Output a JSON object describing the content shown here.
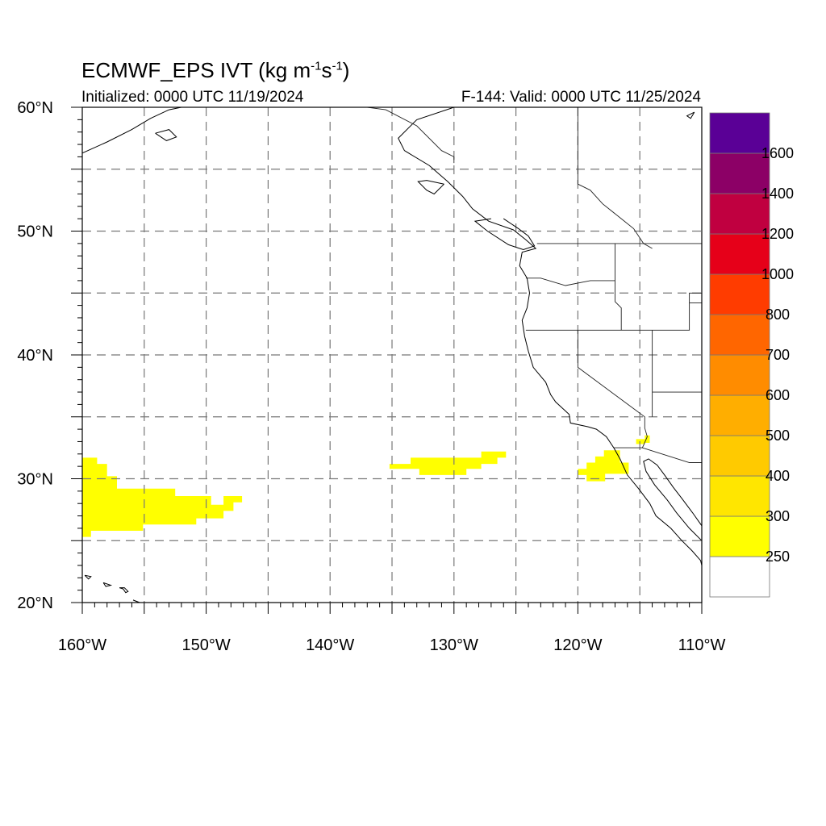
{
  "title": {
    "main": "ECMWF_EPS IVT (kg m",
    "exp1": "-1",
    "mid": "s",
    "exp2": "-1",
    "close": ")"
  },
  "subtitle_left": "Initialized: 0000 UTC 11/19/2024",
  "subtitle_right": "F-144: Valid: 0000 UTC 11/25/2024",
  "map": {
    "lon_range": [
      -160,
      -110
    ],
    "lat_range": [
      20,
      60
    ],
    "lat_labels": [
      {
        "lat": 60,
        "text": "60°N"
      },
      {
        "lat": 50,
        "text": "50°N"
      },
      {
        "lat": 40,
        "text": "40°N"
      },
      {
        "lat": 30,
        "text": "30°N"
      },
      {
        "lat": 20,
        "text": "20°N"
      }
    ],
    "lon_labels": [
      {
        "lon": -160,
        "text": "160°W"
      },
      {
        "lon": -150,
        "text": "150°W"
      },
      {
        "lon": -140,
        "text": "140°W"
      },
      {
        "lon": -130,
        "text": "130°W"
      },
      {
        "lon": -120,
        "text": "120°W"
      },
      {
        "lon": -110,
        "text": "110°W"
      }
    ],
    "grid_step_deg": 5,
    "grid_style": "dashed",
    "fill_color": "#ffff00",
    "ivt_regions": [
      [
        [
          -160,
          31.7
        ],
        [
          -158.8,
          31.7
        ],
        [
          -158.8,
          31.2
        ],
        [
          -158,
          31.2
        ],
        [
          -158,
          30.2
        ],
        [
          -157.2,
          30.2
        ],
        [
          -157.2,
          29.2
        ],
        [
          -152.5,
          29.2
        ],
        [
          -152.5,
          28.6
        ],
        [
          -149.6,
          28.6
        ],
        [
          -149.6,
          27.9
        ],
        [
          -148.6,
          27.9
        ],
        [
          -148.6,
          28.6
        ],
        [
          -147.1,
          28.6
        ],
        [
          -147.1,
          28.1
        ],
        [
          -147.8,
          28.1
        ],
        [
          -147.8,
          27.4
        ],
        [
          -148.6,
          27.4
        ],
        [
          -148.6,
          26.8
        ],
        [
          -150.8,
          26.8
        ],
        [
          -150.8,
          26.3
        ],
        [
          -155.1,
          26.3
        ],
        [
          -155.1,
          25.8
        ],
        [
          -159.3,
          25.8
        ],
        [
          -159.3,
          25.3
        ],
        [
          -160,
          25.3
        ]
      ],
      [
        [
          -135.2,
          31.2
        ],
        [
          -133.5,
          31.2
        ],
        [
          -133.5,
          31.7
        ],
        [
          -127.8,
          31.7
        ],
        [
          -127.8,
          32.2
        ],
        [
          -125.8,
          32.2
        ],
        [
          -125.8,
          31.7
        ],
        [
          -126.5,
          31.7
        ],
        [
          -126.5,
          31.2
        ],
        [
          -127.8,
          31.2
        ],
        [
          -127.8,
          30.8
        ],
        [
          -129,
          30.8
        ],
        [
          -129,
          30.3
        ],
        [
          -132.8,
          30.3
        ],
        [
          -132.8,
          30.8
        ],
        [
          -135.2,
          30.8
        ]
      ],
      [
        [
          -120,
          30.8
        ],
        [
          -119.3,
          30.8
        ],
        [
          -119.3,
          31.3
        ],
        [
          -118.6,
          31.3
        ],
        [
          -118.6,
          31.8
        ],
        [
          -117.9,
          31.8
        ],
        [
          -117.9,
          32.3
        ],
        [
          -116.6,
          32.3
        ],
        [
          -116.6,
          31.3
        ],
        [
          -115.9,
          31.3
        ],
        [
          -115.9,
          30.4
        ],
        [
          -117.8,
          30.4
        ],
        [
          -117.8,
          29.8
        ],
        [
          -119.3,
          29.8
        ],
        [
          -119.3,
          30.3
        ],
        [
          -120,
          30.3
        ]
      ],
      [
        [
          -115.3,
          33.2
        ],
        [
          -114.6,
          33.2
        ],
        [
          -114.6,
          33.5
        ],
        [
          -114.2,
          33.5
        ],
        [
          -114.2,
          32.9
        ],
        [
          -114.6,
          32.9
        ],
        [
          -114.6,
          32.8
        ],
        [
          -115.3,
          32.8
        ]
      ]
    ],
    "coast_lines": [
      [
        [
          -130,
          60
        ],
        [
          -133,
          59
        ],
        [
          -134.5,
          57.5
        ],
        [
          -134,
          56.5
        ],
        [
          -132,
          55.3
        ],
        [
          -130.5,
          54
        ],
        [
          -129.3,
          52.8
        ],
        [
          -128.5,
          51.8
        ],
        [
          -127.2,
          50.8
        ],
        [
          -125.2,
          50.1
        ],
        [
          -124.2,
          49.3
        ],
        [
          -123.4,
          48.6
        ],
        [
          -124.5,
          48.3
        ],
        [
          -124.7,
          47.2
        ],
        [
          -124.1,
          46.2
        ],
        [
          -123.9,
          45
        ],
        [
          -124.1,
          43.8
        ],
        [
          -124.5,
          42.8
        ],
        [
          -124.3,
          41.5
        ],
        [
          -124,
          40.3
        ],
        [
          -123.6,
          39
        ],
        [
          -122.6,
          37.8
        ],
        [
          -122.2,
          36.8
        ],
        [
          -121.8,
          36.2
        ],
        [
          -120.7,
          35.2
        ],
        [
          -120.6,
          34.5
        ],
        [
          -119.2,
          34.2
        ],
        [
          -118.5,
          34
        ],
        [
          -117.7,
          33.4
        ],
        [
          -117.1,
          32.5
        ],
        [
          -116.6,
          31.6
        ],
        [
          -116,
          30.3
        ],
        [
          -115.1,
          29.2
        ],
        [
          -114.2,
          28
        ],
        [
          -113.7,
          27
        ],
        [
          -112.5,
          26
        ],
        [
          -111.6,
          25
        ],
        [
          -110.8,
          24.2
        ],
        [
          -110.1,
          23.4
        ],
        [
          -110,
          23
        ]
      ],
      [
        [
          -110,
          26.2
        ],
        [
          -110.7,
          27.2
        ],
        [
          -111.6,
          28.4
        ],
        [
          -112.3,
          29.3
        ],
        [
          -113,
          30.3
        ],
        [
          -113.6,
          31.1
        ],
        [
          -114.3,
          31.6
        ],
        [
          -114.7,
          31.4
        ],
        [
          -114.5,
          30.6
        ],
        [
          -113.8,
          29.5
        ],
        [
          -112.8,
          28.3
        ],
        [
          -112,
          27.2
        ],
        [
          -111,
          26
        ],
        [
          -110,
          25
        ]
      ],
      [
        [
          -126,
          51
        ],
        [
          -124.8,
          50.2
        ],
        [
          -124,
          49.6
        ],
        [
          -123.5,
          48.8
        ],
        [
          -124.4,
          48.5
        ],
        [
          -125.6,
          48.9
        ],
        [
          -127.3,
          50
        ],
        [
          -128.3,
          50.8
        ],
        [
          -127,
          51
        ]
      ],
      [
        [
          -130.8,
          53.8
        ],
        [
          -131.6,
          53
        ],
        [
          -132.2,
          53.3
        ],
        [
          -132.9,
          54
        ],
        [
          -132.2,
          54.1
        ],
        [
          -130.8,
          53.8
        ]
      ],
      [
        [
          -160,
          56.3
        ],
        [
          -158,
          57.2
        ],
        [
          -156,
          58.2
        ],
        [
          -154.5,
          59.1
        ],
        [
          -153,
          59.8
        ],
        [
          -152,
          60
        ]
      ],
      [
        [
          -154.1,
          57.9
        ],
        [
          -153.2,
          57.3
        ],
        [
          -152.4,
          57.6
        ],
        [
          -153,
          58.2
        ],
        [
          -154.1,
          57.9
        ]
      ],
      [
        [
          -159.8,
          22.2
        ],
        [
          -159.3,
          22.1
        ],
        [
          -159.5,
          21.9
        ],
        [
          -159.8,
          22.2
        ]
      ],
      [
        [
          -158.3,
          21.6
        ],
        [
          -157.7,
          21.4
        ],
        [
          -158.1,
          21.3
        ],
        [
          -158.3,
          21.6
        ]
      ],
      [
        [
          -157,
          21.2
        ],
        [
          -156.7,
          21.1
        ],
        [
          -156.5,
          20.8
        ],
        [
          -156.3,
          20.9
        ],
        [
          -156.6,
          21.2
        ],
        [
          -157,
          21.2
        ]
      ],
      [
        [
          -155.9,
          20.2
        ],
        [
          -155.1,
          19.9
        ],
        [
          -154.9,
          19.6
        ],
        [
          -155.4,
          20
        ],
        [
          -155.9,
          20.2
        ]
      ],
      [
        [
          -110.6,
          59.6
        ],
        [
          -111.2,
          59.3
        ],
        [
          -110.9,
          59.1
        ],
        [
          -110.6,
          59.6
        ]
      ]
    ],
    "border_lines": [
      [
        [
          -123.3,
          49
        ],
        [
          -110,
          49
        ]
      ],
      [
        [
          -124.2,
          46.2
        ],
        [
          -123,
          46.2
        ],
        [
          -121,
          45.6
        ],
        [
          -119,
          46
        ],
        [
          -117,
          46
        ]
      ],
      [
        [
          -117,
          49
        ],
        [
          -117,
          44.3
        ],
        [
          -116.5,
          43.8
        ],
        [
          -116.5,
          42
        ]
      ],
      [
        [
          -124.2,
          42
        ],
        [
          -111,
          42
        ],
        [
          -111,
          45
        ],
        [
          -110,
          45
        ]
      ],
      [
        [
          -111,
          44.2
        ],
        [
          -110,
          44.2
        ]
      ],
      [
        [
          -120,
          42
        ],
        [
          -120,
          39
        ],
        [
          -114.6,
          35
        ],
        [
          -114.6,
          34.1
        ],
        [
          -114.4,
          33.4
        ],
        [
          -114.7,
          32.7
        ],
        [
          -114.8,
          32.5
        ]
      ],
      [
        [
          -114,
          42
        ],
        [
          -114,
          35
        ]
      ],
      [
        [
          -114,
          37
        ],
        [
          -110,
          37
        ]
      ],
      [
        [
          -117.1,
          32.5
        ],
        [
          -114.8,
          32.5
        ],
        [
          -111,
          31.3
        ],
        [
          -110,
          31.3
        ]
      ],
      [
        [
          -130,
          55.5
        ],
        [
          -130,
          56
        ],
        [
          -131,
          56.5
        ],
        [
          -133,
          58.5
        ],
        [
          -135.5,
          59.8
        ],
        [
          -137,
          60
        ]
      ],
      [
        [
          -120,
          60
        ],
        [
          -120,
          53.8
        ],
        [
          -119,
          53.3
        ],
        [
          -118,
          52.2
        ],
        [
          -116.5,
          51
        ],
        [
          -115.5,
          50.2
        ],
        [
          -114.7,
          49
        ],
        [
          -114,
          48.6
        ]
      ]
    ]
  },
  "colorbar": {
    "bins": [
      {
        "color": "#ffffff"
      },
      {
        "color": "#ffff00"
      },
      {
        "color": "#ffe600"
      },
      {
        "color": "#ffca00"
      },
      {
        "color": "#ffae00"
      },
      {
        "color": "#ff8c00"
      },
      {
        "color": "#ff6600"
      },
      {
        "color": "#ff3c00"
      },
      {
        "color": "#e60019"
      },
      {
        "color": "#c00040"
      },
      {
        "color": "#8c0066"
      },
      {
        "color": "#5a0096"
      }
    ],
    "labels": [
      "250",
      "300",
      "400",
      "500",
      "600",
      "700",
      "800",
      "1000",
      "1200",
      "1400",
      "1600"
    ]
  }
}
